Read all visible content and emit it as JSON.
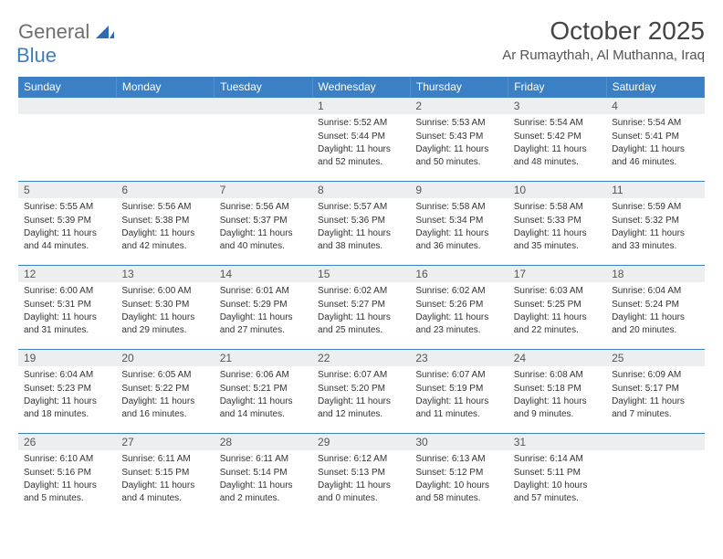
{
  "colors": {
    "header_bg": "#3b7fc4",
    "header_text": "#ffffff",
    "daynum_bg": "#eceeef",
    "daynum_text": "#555555",
    "body_text": "#333333",
    "daynum_border_top": "#3b7fc4",
    "logo_gray": "#6e6e6e",
    "logo_blue": "#3b7fc4",
    "page_bg": "#ffffff"
  },
  "typography": {
    "title_fontsize": 28,
    "location_fontsize": 15,
    "weekday_fontsize": 12,
    "daynum_fontsize": 12,
    "daydata_fontsize": 10
  },
  "logo": {
    "part1": "General",
    "part2": "Blue"
  },
  "title": "October 2025",
  "location": "Ar Rumaythah, Al Muthanna, Iraq",
  "weekdays": [
    "Sunday",
    "Monday",
    "Tuesday",
    "Wednesday",
    "Thursday",
    "Friday",
    "Saturday"
  ],
  "weeks": [
    [
      null,
      null,
      null,
      {
        "n": "1",
        "sr": "Sunrise: 5:52 AM",
        "ss": "Sunset: 5:44 PM",
        "dl": "Daylight: 11 hours and 52 minutes."
      },
      {
        "n": "2",
        "sr": "Sunrise: 5:53 AM",
        "ss": "Sunset: 5:43 PM",
        "dl": "Daylight: 11 hours and 50 minutes."
      },
      {
        "n": "3",
        "sr": "Sunrise: 5:54 AM",
        "ss": "Sunset: 5:42 PM",
        "dl": "Daylight: 11 hours and 48 minutes."
      },
      {
        "n": "4",
        "sr": "Sunrise: 5:54 AM",
        "ss": "Sunset: 5:41 PM",
        "dl": "Daylight: 11 hours and 46 minutes."
      }
    ],
    [
      {
        "n": "5",
        "sr": "Sunrise: 5:55 AM",
        "ss": "Sunset: 5:39 PM",
        "dl": "Daylight: 11 hours and 44 minutes."
      },
      {
        "n": "6",
        "sr": "Sunrise: 5:56 AM",
        "ss": "Sunset: 5:38 PM",
        "dl": "Daylight: 11 hours and 42 minutes."
      },
      {
        "n": "7",
        "sr": "Sunrise: 5:56 AM",
        "ss": "Sunset: 5:37 PM",
        "dl": "Daylight: 11 hours and 40 minutes."
      },
      {
        "n": "8",
        "sr": "Sunrise: 5:57 AM",
        "ss": "Sunset: 5:36 PM",
        "dl": "Daylight: 11 hours and 38 minutes."
      },
      {
        "n": "9",
        "sr": "Sunrise: 5:58 AM",
        "ss": "Sunset: 5:34 PM",
        "dl": "Daylight: 11 hours and 36 minutes."
      },
      {
        "n": "10",
        "sr": "Sunrise: 5:58 AM",
        "ss": "Sunset: 5:33 PM",
        "dl": "Daylight: 11 hours and 35 minutes."
      },
      {
        "n": "11",
        "sr": "Sunrise: 5:59 AM",
        "ss": "Sunset: 5:32 PM",
        "dl": "Daylight: 11 hours and 33 minutes."
      }
    ],
    [
      {
        "n": "12",
        "sr": "Sunrise: 6:00 AM",
        "ss": "Sunset: 5:31 PM",
        "dl": "Daylight: 11 hours and 31 minutes."
      },
      {
        "n": "13",
        "sr": "Sunrise: 6:00 AM",
        "ss": "Sunset: 5:30 PM",
        "dl": "Daylight: 11 hours and 29 minutes."
      },
      {
        "n": "14",
        "sr": "Sunrise: 6:01 AM",
        "ss": "Sunset: 5:29 PM",
        "dl": "Daylight: 11 hours and 27 minutes."
      },
      {
        "n": "15",
        "sr": "Sunrise: 6:02 AM",
        "ss": "Sunset: 5:27 PM",
        "dl": "Daylight: 11 hours and 25 minutes."
      },
      {
        "n": "16",
        "sr": "Sunrise: 6:02 AM",
        "ss": "Sunset: 5:26 PM",
        "dl": "Daylight: 11 hours and 23 minutes."
      },
      {
        "n": "17",
        "sr": "Sunrise: 6:03 AM",
        "ss": "Sunset: 5:25 PM",
        "dl": "Daylight: 11 hours and 22 minutes."
      },
      {
        "n": "18",
        "sr": "Sunrise: 6:04 AM",
        "ss": "Sunset: 5:24 PM",
        "dl": "Daylight: 11 hours and 20 minutes."
      }
    ],
    [
      {
        "n": "19",
        "sr": "Sunrise: 6:04 AM",
        "ss": "Sunset: 5:23 PM",
        "dl": "Daylight: 11 hours and 18 minutes."
      },
      {
        "n": "20",
        "sr": "Sunrise: 6:05 AM",
        "ss": "Sunset: 5:22 PM",
        "dl": "Daylight: 11 hours and 16 minutes."
      },
      {
        "n": "21",
        "sr": "Sunrise: 6:06 AM",
        "ss": "Sunset: 5:21 PM",
        "dl": "Daylight: 11 hours and 14 minutes."
      },
      {
        "n": "22",
        "sr": "Sunrise: 6:07 AM",
        "ss": "Sunset: 5:20 PM",
        "dl": "Daylight: 11 hours and 12 minutes."
      },
      {
        "n": "23",
        "sr": "Sunrise: 6:07 AM",
        "ss": "Sunset: 5:19 PM",
        "dl": "Daylight: 11 hours and 11 minutes."
      },
      {
        "n": "24",
        "sr": "Sunrise: 6:08 AM",
        "ss": "Sunset: 5:18 PM",
        "dl": "Daylight: 11 hours and 9 minutes."
      },
      {
        "n": "25",
        "sr": "Sunrise: 6:09 AM",
        "ss": "Sunset: 5:17 PM",
        "dl": "Daylight: 11 hours and 7 minutes."
      }
    ],
    [
      {
        "n": "26",
        "sr": "Sunrise: 6:10 AM",
        "ss": "Sunset: 5:16 PM",
        "dl": "Daylight: 11 hours and 5 minutes."
      },
      {
        "n": "27",
        "sr": "Sunrise: 6:11 AM",
        "ss": "Sunset: 5:15 PM",
        "dl": "Daylight: 11 hours and 4 minutes."
      },
      {
        "n": "28",
        "sr": "Sunrise: 6:11 AM",
        "ss": "Sunset: 5:14 PM",
        "dl": "Daylight: 11 hours and 2 minutes."
      },
      {
        "n": "29",
        "sr": "Sunrise: 6:12 AM",
        "ss": "Sunset: 5:13 PM",
        "dl": "Daylight: 11 hours and 0 minutes."
      },
      {
        "n": "30",
        "sr": "Sunrise: 6:13 AM",
        "ss": "Sunset: 5:12 PM",
        "dl": "Daylight: 10 hours and 58 minutes."
      },
      {
        "n": "31",
        "sr": "Sunrise: 6:14 AM",
        "ss": "Sunset: 5:11 PM",
        "dl": "Daylight: 10 hours and 57 minutes."
      },
      null
    ]
  ]
}
